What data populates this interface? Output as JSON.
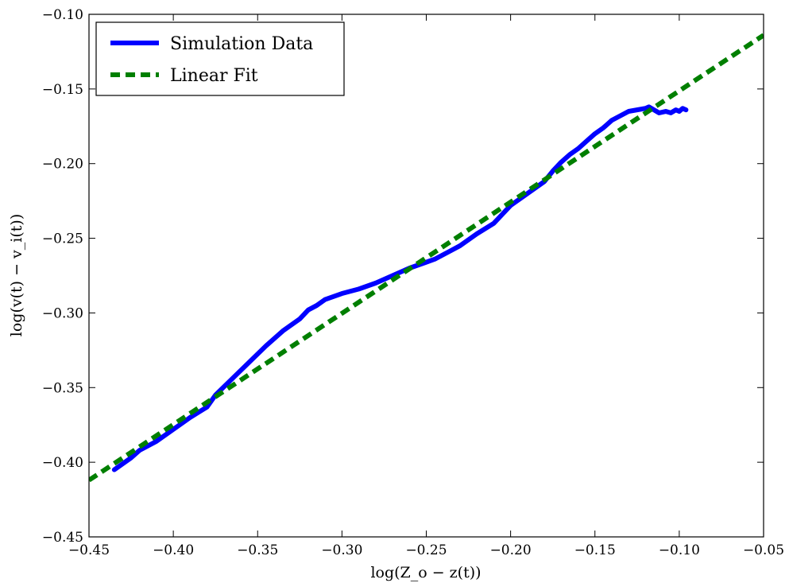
{
  "chart_data": {
    "type": "line",
    "title": "",
    "xlabel": "log(Z_o − z(t))",
    "ylabel": "log(v(t) − v_i(t))",
    "xlim": [
      -0.45,
      -0.05
    ],
    "ylim": [
      -0.45,
      -0.1
    ],
    "grid": false,
    "legend_position": "top-left",
    "x_ticks": [
      -0.45,
      -0.4,
      -0.35,
      -0.3,
      -0.25,
      -0.2,
      -0.15,
      -0.1,
      -0.05
    ],
    "x_tick_labels": [
      "−0.45",
      "−0.40",
      "−0.35",
      "−0.30",
      "−0.25",
      "−0.20",
      "−0.15",
      "−0.10",
      "−0.05"
    ],
    "y_ticks": [
      -0.45,
      -0.4,
      -0.35,
      -0.3,
      -0.25,
      -0.2,
      -0.15,
      -0.1
    ],
    "y_tick_labels": [
      "−0.45",
      "−0.40",
      "−0.35",
      "−0.30",
      "−0.25",
      "−0.20",
      "−0.15",
      "−0.10"
    ],
    "series": [
      {
        "name": "Simulation Data",
        "color": "#0000ff",
        "style": "solid",
        "x": [
          -0.435,
          -0.425,
          -0.42,
          -0.41,
          -0.4,
          -0.39,
          -0.38,
          -0.375,
          -0.365,
          -0.355,
          -0.345,
          -0.335,
          -0.325,
          -0.32,
          -0.315,
          -0.31,
          -0.3,
          -0.29,
          -0.28,
          -0.27,
          -0.26,
          -0.255,
          -0.25,
          -0.245,
          -0.24,
          -0.235,
          -0.23,
          -0.225,
          -0.22,
          -0.21,
          -0.205,
          -0.2,
          -0.195,
          -0.19,
          -0.18,
          -0.175,
          -0.17,
          -0.165,
          -0.16,
          -0.155,
          -0.15,
          -0.145,
          -0.14,
          -0.135,
          -0.13,
          -0.125,
          -0.12,
          -0.118,
          -0.115,
          -0.112,
          -0.108,
          -0.105,
          -0.102,
          -0.1,
          -0.098,
          -0.096
        ],
        "y": [
          -0.405,
          -0.397,
          -0.392,
          -0.386,
          -0.378,
          -0.37,
          -0.363,
          -0.355,
          -0.344,
          -0.333,
          -0.322,
          -0.312,
          -0.304,
          -0.298,
          -0.295,
          -0.291,
          -0.287,
          -0.284,
          -0.28,
          -0.275,
          -0.27,
          -0.268,
          -0.266,
          -0.264,
          -0.261,
          -0.258,
          -0.255,
          -0.251,
          -0.247,
          -0.24,
          -0.234,
          -0.228,
          -0.224,
          -0.22,
          -0.212,
          -0.205,
          -0.199,
          -0.194,
          -0.19,
          -0.185,
          -0.18,
          -0.176,
          -0.171,
          -0.168,
          -0.165,
          -0.164,
          -0.163,
          -0.162,
          -0.164,
          -0.166,
          -0.165,
          -0.166,
          -0.164,
          -0.165,
          -0.163,
          -0.164
        ]
      },
      {
        "name": "Linear Fit",
        "color": "#007f00",
        "style": "dashed",
        "x": [
          -0.45,
          -0.05
        ],
        "y": [
          -0.412,
          -0.114
        ]
      }
    ]
  }
}
